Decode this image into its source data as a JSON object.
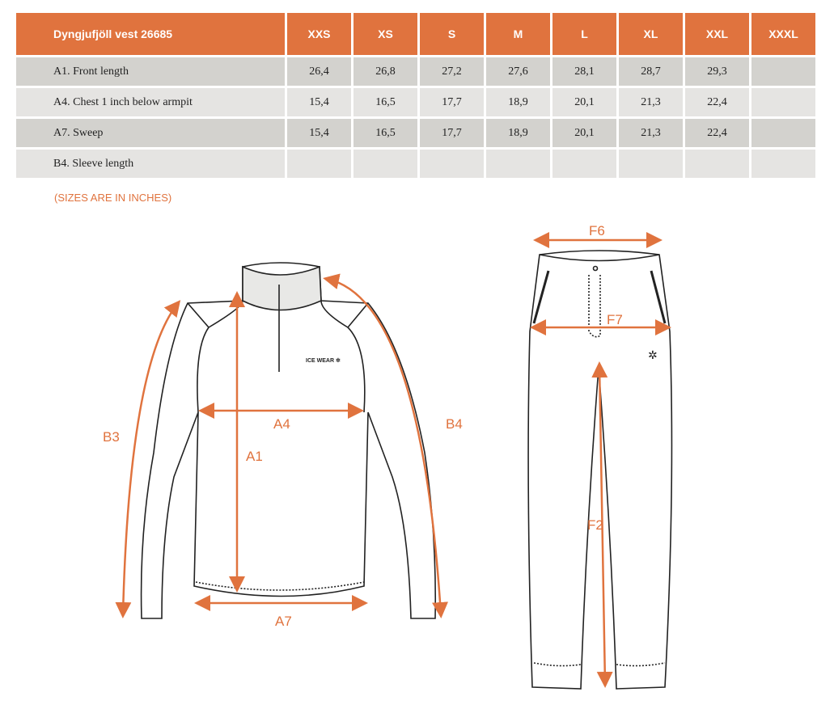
{
  "table": {
    "title": "Dyngjufjöll vest 26685",
    "sizes": [
      "XXS",
      "XS",
      "S",
      "M",
      "L",
      "XL",
      "XXL",
      "XXXL"
    ],
    "rows": [
      {
        "label": "A1. Front length",
        "values": [
          "26,4",
          "26,8",
          "27,2",
          "27,6",
          "28,1",
          "28,7",
          "29,3",
          ""
        ]
      },
      {
        "label": "A4. Chest 1 inch below armpit",
        "values": [
          "15,4",
          "16,5",
          "17,7",
          "18,9",
          "20,1",
          "21,3",
          "22,4",
          ""
        ]
      },
      {
        "label": "A7. Sweep",
        "values": [
          "15,4",
          "16,5",
          "17,7",
          "18,9",
          "20,1",
          "21,3",
          "22,4",
          ""
        ]
      },
      {
        "label": "B4. Sleeve length",
        "values": [
          "",
          "",
          "",
          "",
          "",
          "",
          "",
          ""
        ]
      }
    ]
  },
  "note": "(SIZES ARE IN INCHES)",
  "diagram": {
    "jacket_labels": {
      "a1": "A1",
      "a4": "A4",
      "a7": "A7",
      "b3": "B3",
      "b4": "B4"
    },
    "pants_labels": {
      "f2": "F2",
      "f6": "F6",
      "f7": "F7"
    },
    "logo": "ICE WEAR",
    "accent": "#e0733e"
  }
}
